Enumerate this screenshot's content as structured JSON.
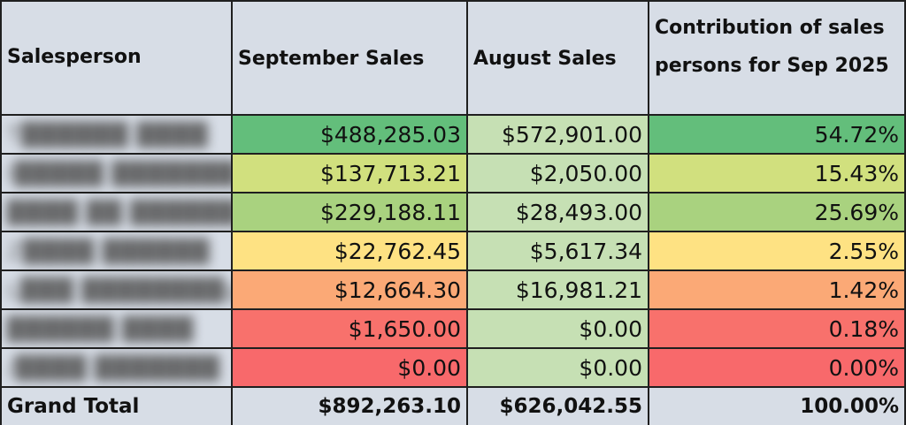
{
  "table": {
    "headers": [
      "Salesperson",
      "September Sales",
      "August Sales",
      "Contribution of sales persons for Sep 2025"
    ],
    "rows": [
      {
        "salesperson": "T██████ ████",
        "september": "$488,285.03",
        "august": "$572,901.00",
        "contribution": "54.72%",
        "colors": {
          "september": "#63be7b",
          "august": "#c6e0b4",
          "contribution": "#63be7b"
        }
      },
      {
        "salesperson": "I█████ ███████",
        "september": "$137,713.21",
        "august": "$2,050.00",
        "contribution": "15.43%",
        "colors": {
          "september": "#d1e07e",
          "august": "#c6e0b4",
          "contribution": "#d1e07e"
        }
      },
      {
        "salesperson": "████ ██ ██████",
        "september": "$229,188.11",
        "august": "$28,493.00",
        "contribution": "25.69%",
        "colors": {
          "september": "#a9d27f",
          "august": "#c6e0b4",
          "contribution": "#a9d27f"
        }
      },
      {
        "salesperson": "Z████ ██████",
        "september": "$22,762.45",
        "august": "$5,617.34",
        "contribution": "2.55%",
        "colors": {
          "september": "#fee283",
          "august": "#c6e0b4",
          "contribution": "#fee283"
        }
      },
      {
        "salesperson": "L███ ████████g",
        "september": "$12,664.30",
        "august": "$16,981.21",
        "contribution": "1.42%",
        "colors": {
          "september": "#fba976",
          "august": "#c6e0b4",
          "contribution": "#fba976"
        }
      },
      {
        "salesperson": "██████ ████",
        "september": "$1,650.00",
        "august": "$0.00",
        "contribution": "0.18%",
        "colors": {
          "september": "#f8716c",
          "august": "#c6e0b4",
          "contribution": "#f8716c"
        }
      },
      {
        "salesperson": "/████ ███████",
        "september": "$0.00",
        "august": "$0.00",
        "contribution": "0.00%",
        "colors": {
          "september": "#f8696b",
          "august": "#c6e0b4",
          "contribution": "#f8696b"
        }
      }
    ],
    "total": {
      "label": "Grand Total",
      "september": "$892,263.10",
      "august": "$626,042.55",
      "contribution": "100.00%"
    }
  }
}
